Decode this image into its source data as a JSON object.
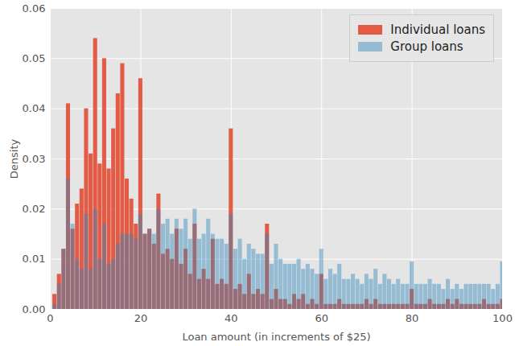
{
  "chart_data": {
    "type": "bar",
    "xlabel": "Loan amount (in increments of $25)",
    "ylabel": "Density",
    "x": [
      1,
      2,
      3,
      4,
      5,
      6,
      7,
      8,
      9,
      10,
      11,
      12,
      13,
      14,
      15,
      16,
      17,
      18,
      19,
      20,
      21,
      22,
      23,
      24,
      25,
      26,
      27,
      28,
      29,
      30,
      31,
      32,
      33,
      34,
      35,
      36,
      37,
      38,
      39,
      40,
      41,
      42,
      43,
      44,
      45,
      46,
      47,
      48,
      49,
      50,
      51,
      52,
      53,
      54,
      55,
      56,
      57,
      58,
      59,
      60,
      61,
      62,
      63,
      64,
      65,
      66,
      67,
      68,
      69,
      70,
      71,
      72,
      73,
      74,
      75,
      76,
      77,
      78,
      79,
      80,
      81,
      82,
      83,
      84,
      85,
      86,
      87,
      88,
      89,
      90,
      91,
      92,
      93,
      94,
      95,
      96,
      97,
      98,
      99,
      100
    ],
    "series": [
      {
        "name": "Individual loans",
        "color": "#E24A33",
        "values": [
          0.003,
          0.007,
          0.012,
          0.041,
          0.016,
          0.021,
          0.024,
          0.04,
          0.031,
          0.054,
          0.029,
          0.05,
          0.028,
          0.036,
          0.043,
          0.049,
          0.026,
          0.022,
          0.017,
          0.046,
          0.015,
          0.016,
          0.013,
          0.023,
          0.011,
          0.012,
          0.01,
          0.016,
          0.009,
          0.012,
          0.007,
          0.017,
          0.006,
          0.008,
          0.006,
          0.014,
          0.005,
          0.006,
          0.005,
          0.036,
          0.004,
          0.005,
          0.003,
          0.007,
          0.003,
          0.004,
          0.003,
          0.017,
          0.002,
          0.004,
          0.002,
          0.002,
          0.001,
          0.003,
          0.002,
          0.003,
          0.001,
          0.002,
          0.001,
          0.007,
          0.001,
          0.001,
          0.001,
          0.002,
          0.001,
          0.001,
          0.001,
          0.001,
          0.001,
          0.002,
          0.001,
          0.002,
          0.001,
          0.001,
          0.001,
          0.001,
          0.001,
          0.001,
          0.001,
          0.004,
          0.001,
          0.001,
          0.001,
          0.002,
          0.001,
          0.001,
          0.001,
          0.002,
          0.001,
          0.002,
          0.001,
          0.001,
          0.001,
          0.001,
          0.001,
          0.002,
          0.001,
          0.001,
          0.001,
          0.002
        ]
      },
      {
        "name": "Group loans",
        "color": "#348ABD",
        "values": [
          0.001,
          0.005,
          0.012,
          0.026,
          0.017,
          0.01,
          0.008,
          0.019,
          0.008,
          0.02,
          0.01,
          0.017,
          0.009,
          0.01,
          0.013,
          0.015,
          0.015,
          0.015,
          0.014,
          0.019,
          0.015,
          0.016,
          0.015,
          0.02,
          0.017,
          0.018,
          0.015,
          0.018,
          0.016,
          0.018,
          0.014,
          0.02,
          0.014,
          0.015,
          0.018,
          0.015,
          0.014,
          0.014,
          0.013,
          0.019,
          0.012,
          0.014,
          0.01,
          0.013,
          0.012,
          0.011,
          0.011,
          0.015,
          0.009,
          0.013,
          0.01,
          0.009,
          0.009,
          0.009,
          0.01,
          0.008,
          0.009,
          0.008,
          0.007,
          0.012,
          0.006,
          0.008,
          0.007,
          0.009,
          0.006,
          0.006,
          0.007,
          0.006,
          0.005,
          0.007,
          0.006,
          0.008,
          0.005,
          0.007,
          0.006,
          0.005,
          0.006,
          0.005,
          0.005,
          0.0095,
          0.005,
          0.005,
          0.005,
          0.006,
          0.005,
          0.005,
          0.004,
          0.006,
          0.004,
          0.005,
          0.004,
          0.005,
          0.005,
          0.005,
          0.005,
          0.005,
          0.005,
          0.004,
          0.005,
          0.0095
        ]
      }
    ],
    "xlim": [
      0,
      100
    ],
    "xticks": [
      0,
      20,
      40,
      60,
      80,
      100
    ],
    "ylim": [
      0,
      0.06
    ],
    "yticks": [
      {
        "value": 0,
        "label": "0.00"
      },
      {
        "value": 0.01,
        "label": "0.01"
      },
      {
        "value": 0.02,
        "label": "0.02"
      },
      {
        "value": 0.03,
        "label": "0.03"
      },
      {
        "value": 0.04,
        "label": "0.04"
      },
      {
        "value": 0.05,
        "label": "0.05"
      },
      {
        "value": 0.06,
        "label": "0.06"
      }
    ],
    "grid": true,
    "legend": "upper right"
  }
}
